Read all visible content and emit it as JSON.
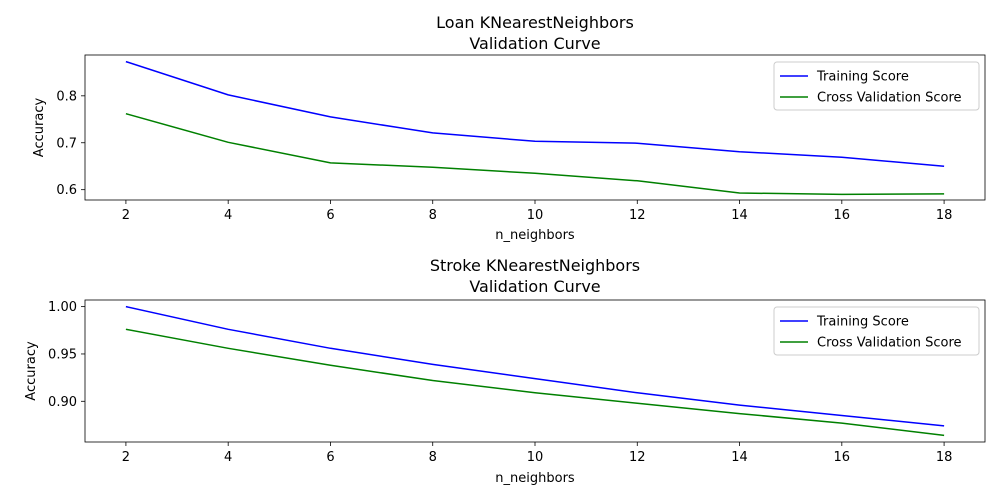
{
  "chart_data": [
    {
      "type": "line",
      "title": "Loan KNearestNeighbors",
      "subtitle": "Validation Curve",
      "xlabel": "n_neighbors",
      "ylabel": "Accuracy",
      "x": [
        2,
        4,
        6,
        8,
        10,
        12,
        14,
        16,
        18
      ],
      "xlim": [
        1.2,
        18.8
      ],
      "ylim": [
        0.578,
        0.887
      ],
      "xticks": [
        2,
        4,
        6,
        8,
        10,
        12,
        14,
        16,
        18
      ],
      "yticks": [
        0.6,
        0.7,
        0.8
      ],
      "grid": false,
      "legend": "upper right",
      "series": [
        {
          "name": "Training Score",
          "color": "#0000ff",
          "values": [
            0.873,
            0.802,
            0.755,
            0.721,
            0.703,
            0.699,
            0.681,
            0.669,
            0.65
          ]
        },
        {
          "name": "Cross Validation Score",
          "color": "#008000",
          "values": [
            0.762,
            0.701,
            0.657,
            0.648,
            0.635,
            0.619,
            0.593,
            0.59,
            0.591
          ]
        }
      ]
    },
    {
      "type": "line",
      "title": "Stroke KNearestNeighbors",
      "subtitle": "Validation Curve",
      "xlabel": "n_neighbors",
      "ylabel": "Accuracy",
      "x": [
        2,
        4,
        6,
        8,
        10,
        12,
        14,
        16,
        18
      ],
      "xlim": [
        1.2,
        18.8
      ],
      "ylim": [
        0.857,
        1.007
      ],
      "xticks": [
        2,
        4,
        6,
        8,
        10,
        12,
        14,
        16,
        18
      ],
      "yticks": [
        0.9,
        0.95,
        1.0
      ],
      "ytick_labels": [
        "0.90",
        "0.95",
        "1.00"
      ],
      "grid": false,
      "legend": "upper right",
      "series": [
        {
          "name": "Training Score",
          "color": "#0000ff",
          "values": [
            1.0,
            0.976,
            0.956,
            0.939,
            0.924,
            0.909,
            0.896,
            0.885,
            0.874
          ]
        },
        {
          "name": "Cross Validation Score",
          "color": "#008000",
          "values": [
            0.976,
            0.956,
            0.938,
            0.922,
            0.909,
            0.898,
            0.887,
            0.877,
            0.864
          ]
        }
      ]
    }
  ]
}
